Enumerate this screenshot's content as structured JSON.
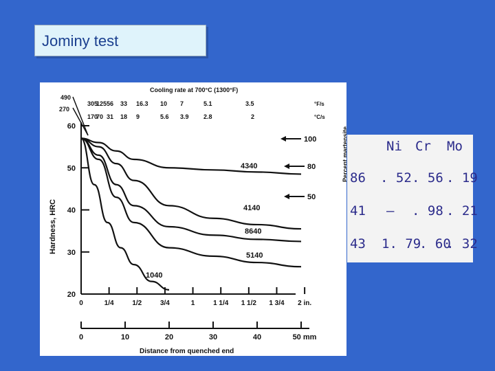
{
  "slide": {
    "title": "Jominy test"
  },
  "chart_data": {
    "type": "line",
    "xlabel": "Distance from quenched end",
    "ylabel": "Hardness, HRC",
    "right_label": "Percent martensite",
    "top_title": "Cooling rate at 700°C (1300°F)",
    "ylim": [
      20,
      60
    ],
    "y_ticks": [
      "20",
      "30",
      "40",
      "50",
      "60"
    ],
    "x_mm_ticks": [
      "0",
      "10",
      "20",
      "30",
      "40",
      "50 mm"
    ],
    "x_in_ticks": [
      "0",
      "1/4",
      "1/2",
      "3/4",
      "1",
      "1 1/4",
      "1 1/2",
      "1 3/4",
      "2 in."
    ],
    "cooling_rates_F": [
      "490",
      "305",
      "125",
      "56",
      "33",
      "16.3",
      "10",
      "7",
      "5.1",
      "3.5"
    ],
    "cooling_rates_C": [
      "270",
      "170",
      "70",
      "31",
      "18",
      "9",
      "5.6",
      "3.9",
      "2.8",
      "2"
    ],
    "unit_F": "°F/s",
    "unit_C": "°C/s",
    "martensite_marks": [
      "100",
      "80",
      "50"
    ],
    "series": [
      {
        "name": "4340",
        "x": [
          0,
          4,
          8,
          12,
          20,
          30,
          40,
          50
        ],
        "values": [
          57,
          56,
          54,
          52,
          50,
          49.5,
          49,
          48.5
        ]
      },
      {
        "name": "4140",
        "x": [
          0,
          4,
          8,
          12,
          20,
          30,
          40,
          50
        ],
        "values": [
          57,
          55,
          51,
          47,
          41,
          38,
          36.5,
          35.5
        ]
      },
      {
        "name": "8640",
        "x": [
          0,
          4,
          8,
          12,
          20,
          30,
          40,
          50
        ],
        "values": [
          57,
          53,
          46,
          41,
          36,
          34,
          33,
          32.5
        ]
      },
      {
        "name": "5140",
        "x": [
          0,
          4,
          8,
          12,
          20,
          30,
          40,
          50
        ],
        "values": [
          57,
          52,
          43,
          37,
          31,
          29,
          27.5,
          26.5
        ]
      },
      {
        "name": "1040",
        "x": [
          0,
          3,
          6,
          9,
          12,
          16,
          20
        ],
        "values": [
          57,
          46,
          37,
          31,
          27,
          23,
          21
        ]
      }
    ]
  },
  "composition": {
    "headers": [
      "Ni",
      "Cr",
      "Mo"
    ],
    "rows": [
      [
        "86",
        ". 52",
        ". 56",
        ". 19"
      ],
      [
        "41",
        "–",
        ". 98",
        ". 21"
      ],
      [
        "43",
        "1. 79",
        ". 60",
        ". 32"
      ]
    ]
  }
}
